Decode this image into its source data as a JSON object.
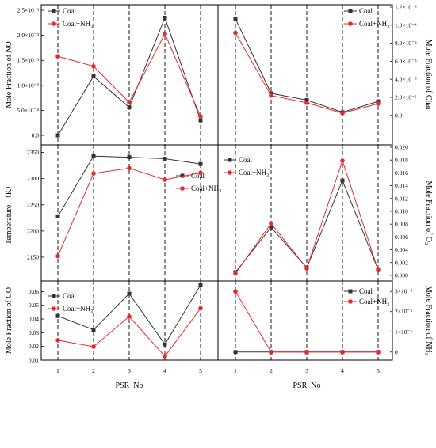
{
  "x_axis_label": "PSR_No",
  "x_ticks": [
    "1",
    "2",
    "3",
    "4",
    "5"
  ],
  "chart_data": [
    {
      "type": "line",
      "ylabel": "Mole Fraction of NO",
      "ylim": [
        -0.0003,
        0.0025
      ],
      "yticks": [
        {
          "v": 0.0025,
          "label": "2.5×10⁻³"
        },
        {
          "v": 0.002,
          "label": "2.0×10⁻³"
        },
        {
          "v": 0.0015,
          "label": "1.5×10⁻³"
        },
        {
          "v": 0.001,
          "label": "1.0×10⁻³"
        },
        {
          "v": 0.0005,
          "label": "5.0×10⁻⁴"
        },
        {
          "v": 0.0,
          "label": "0.0"
        }
      ],
      "x": [
        1,
        2,
        3,
        4,
        5
      ],
      "series": [
        {
          "name": "Coal",
          "color": "#333333",
          "marker": "square",
          "values": [
            0.0,
            0.00118,
            0.00056,
            0.00235,
            0.0003
          ]
        },
        {
          "name": "Coal+NH₃",
          "color": "#e8282b",
          "marker": "circle",
          "values": [
            0.00158,
            0.00138,
            0.00066,
            0.00203,
            0.00038
          ]
        }
      ],
      "legend": "top-left"
    },
    {
      "type": "line",
      "ylabel": "Mole Fraction of Char",
      "ylim": [
        -3e-05,
        0.00012
      ],
      "yticks": [
        {
          "v": 0.00012,
          "label": "1.2×10⁻⁴"
        },
        {
          "v": 0.0001,
          "label": "1.0×10⁻⁴"
        },
        {
          "v": 8e-05,
          "label": "8.0×10⁻⁵"
        },
        {
          "v": 6e-05,
          "label": "6.0×10⁻⁵"
        },
        {
          "v": 4e-05,
          "label": "4.0×10⁻⁵"
        },
        {
          "v": 2e-05,
          "label": "2.0×10⁻⁵"
        },
        {
          "v": 0.0,
          "label": "0.0"
        }
      ],
      "x": [
        1,
        2,
        3,
        4,
        5
      ],
      "series": [
        {
          "name": "Coal",
          "color": "#333333",
          "marker": "square",
          "values": [
            0.000107,
            2.45e-05,
            1.7e-05,
            3.5e-06,
            1.55e-05
          ]
        },
        {
          "name": "Coal+NH₃",
          "color": "#e8282b",
          "marker": "circle",
          "values": [
            9.15e-05,
            2.2e-05,
            1.4e-05,
            2.5e-06,
            1.3e-05
          ]
        }
      ],
      "legend": "top-right"
    },
    {
      "type": "line",
      "ylabel": "Temperature （K）",
      "ylim": [
        2100,
        2360
      ],
      "yticks": [
        {
          "v": 2350,
          "label": "2350"
        },
        {
          "v": 2300,
          "label": "2300"
        },
        {
          "v": 2250,
          "label": "2250"
        },
        {
          "v": 2200,
          "label": "2200"
        },
        {
          "v": 2150,
          "label": "2150"
        },
        {
          "v": 2100,
          "label": "2100"
        }
      ],
      "x": [
        1,
        2,
        3,
        4,
        5
      ],
      "series": [
        {
          "name": "Coal",
          "color": "#333333",
          "marker": "square",
          "values": [
            2228,
            2343,
            2341,
            2338,
            2328
          ]
        },
        {
          "name": "Coal+NH₃",
          "color": "#e8282b",
          "marker": "circle",
          "values": [
            2152,
            2310,
            2320,
            2298,
            2311
          ]
        }
      ],
      "legend": "center-right"
    },
    {
      "type": "line",
      "ylabel": "Mole Fraction of O₂",
      "ylim": [
        -0.0005,
        0.02
      ],
      "yticks": [
        {
          "v": 0.02,
          "label": "0.020"
        },
        {
          "v": 0.018,
          "label": "0.018"
        },
        {
          "v": 0.016,
          "label": "0.016"
        },
        {
          "v": 0.014,
          "label": "0.014"
        },
        {
          "v": 0.012,
          "label": "0.012"
        },
        {
          "v": 0.01,
          "label": "0.010"
        },
        {
          "v": 0.008,
          "label": "0.008"
        },
        {
          "v": 0.006,
          "label": "0.006"
        },
        {
          "v": 0.004,
          "label": "0.004"
        },
        {
          "v": 0.002,
          "label": "0.002"
        },
        {
          "v": 0.0,
          "label": "0.000"
        }
      ],
      "x": [
        1,
        2,
        3,
        4,
        5
      ],
      "series": [
        {
          "name": "Coal",
          "color": "#333333",
          "marker": "square",
          "values": [
            0.0005,
            0.0075,
            0.0012,
            0.0148,
            0.0009
          ]
        },
        {
          "name": "Coal+NH₃",
          "color": "#e8282b",
          "marker": "circle",
          "values": [
            0.0003,
            0.0081,
            0.0011,
            0.0179,
            0.0008
          ]
        }
      ],
      "legend": "top-left"
    },
    {
      "type": "line",
      "ylabel": "Mole Fraction of CO",
      "ylim": [
        0.01,
        0.066
      ],
      "yticks": [
        {
          "v": 0.06,
          "label": "0.06"
        },
        {
          "v": 0.05,
          "label": "0.05"
        },
        {
          "v": 0.04,
          "label": "0.04"
        },
        {
          "v": 0.03,
          "label": "0.03"
        },
        {
          "v": 0.02,
          "label": "0.02"
        },
        {
          "v": 0.01,
          "label": "0.01"
        }
      ],
      "x": [
        1,
        2,
        3,
        4,
        5
      ],
      "series": [
        {
          "name": "Coal",
          "color": "#333333",
          "marker": "square",
          "values": [
            0.0422,
            0.0322,
            0.0585,
            0.0215,
            0.0648
          ]
        },
        {
          "name": "Coal+NH₃",
          "color": "#e8282b",
          "marker": "circle",
          "values": [
            0.0245,
            0.0198,
            0.0418,
            0.0128,
            0.0478
          ]
        }
      ],
      "legend": "top-left"
    },
    {
      "type": "line",
      "ylabel": "Mole Fraction of NH₃",
      "ylim": [
        -4e-06,
        3.4e-05
      ],
      "yticks": [
        {
          "v": 3e-05,
          "label": "3×10⁻⁵"
        },
        {
          "v": 2e-05,
          "label": "2×10⁻⁵"
        },
        {
          "v": 1e-05,
          "label": "1×10⁻⁵"
        },
        {
          "v": 0.0,
          "label": "0"
        }
      ],
      "x": [
        1,
        2,
        3,
        4,
        5
      ],
      "series": [
        {
          "name": "Coal",
          "color": "#333333",
          "marker": "square",
          "values": [
            0.0,
            0.0,
            0.0,
            0.0,
            0.0
          ]
        },
        {
          "name": "Coal+NH₃",
          "color": "#e8282b",
          "marker": "circle",
          "values": [
            3e-05,
            0.0,
            0.0,
            0.0,
            0.0
          ]
        }
      ],
      "legend": "top-left"
    }
  ]
}
